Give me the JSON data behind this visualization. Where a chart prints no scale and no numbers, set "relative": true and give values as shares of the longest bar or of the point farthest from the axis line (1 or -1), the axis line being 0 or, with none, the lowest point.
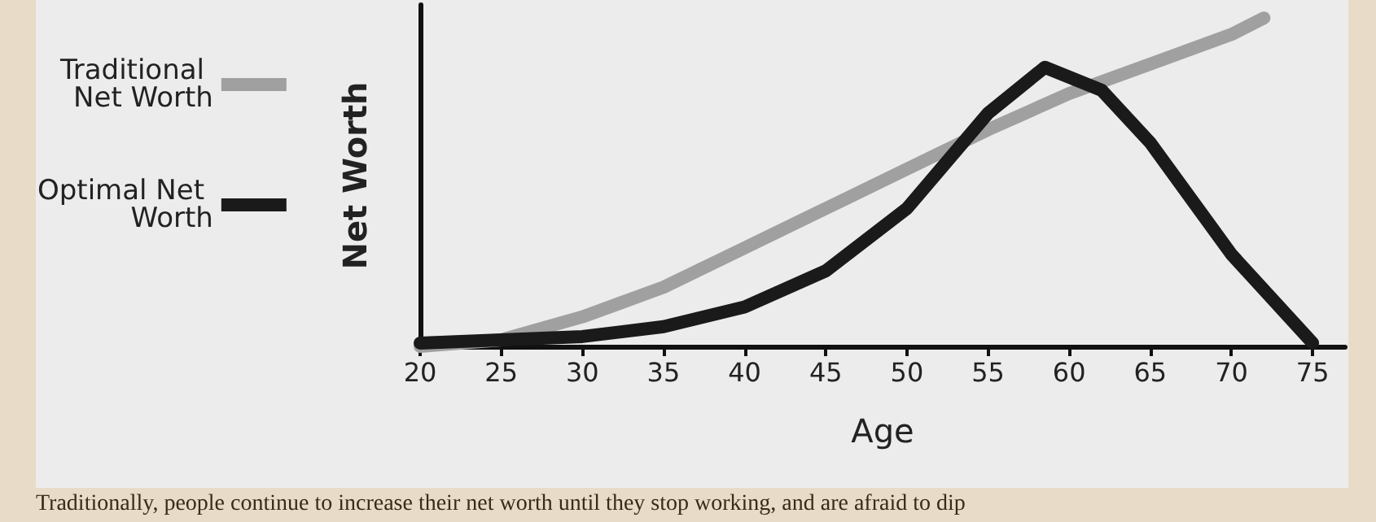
{
  "chart_data": {
    "type": "line",
    "relative": true,
    "xlabel": "Age",
    "ylabel": "Net Worth",
    "xlim": [
      20,
      77
    ],
    "xticks": [
      20,
      25,
      30,
      35,
      40,
      45,
      50,
      55,
      60,
      65,
      70,
      75
    ],
    "series": [
      {
        "name": "Traditional Net Worth",
        "color": "#a0a0a0",
        "x": [
          20,
          25,
          30,
          35,
          40,
          45,
          50,
          55,
          60,
          65,
          70,
          72
        ],
        "values": [
          0,
          0.02,
          0.09,
          0.18,
          0.3,
          0.42,
          0.54,
          0.66,
          0.77,
          0.86,
          0.95,
          1
        ]
      },
      {
        "name": "Optimal Net Worth",
        "color": "#1a1a1a",
        "x": [
          20,
          30,
          35,
          40,
          45,
          50,
          55,
          58.5,
          62,
          65,
          70,
          75
        ],
        "values": [
          0.01,
          0.03,
          0.06,
          0.12,
          0.23,
          0.42,
          0.71,
          0.85,
          0.78,
          0.62,
          0.28,
          0.01
        ]
      }
    ],
    "legend": "left",
    "marker": "none",
    "line_style": "solid",
    "grid": false,
    "annotations": [
      "Traditionally, people continue to increase their net worth until they stop working, and are afraid to dip"
    ]
  }
}
